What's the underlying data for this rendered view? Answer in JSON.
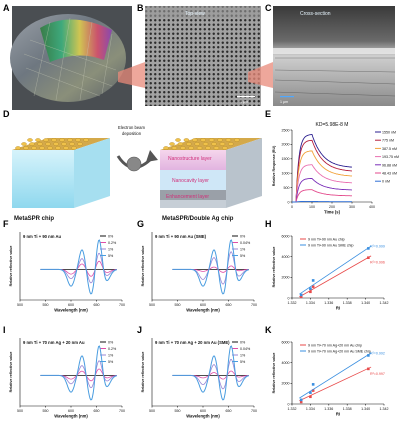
{
  "panels": [
    "A",
    "B",
    "C",
    "D",
    "E",
    "F",
    "G",
    "H",
    "I",
    "J",
    "K"
  ],
  "sem": {
    "top_label": "Top-view",
    "cross_label": "Cross-section",
    "scale_b": "1 μm",
    "scale_c": "1 μm"
  },
  "schematic": {
    "arrow_label": "Electron beam deposition",
    "layer_nano": "Nanostructure layer",
    "layer_cavity": "Nanocavity layer",
    "layer_enh": "Enhancement layer",
    "chip_left": "MetaSPR chip",
    "chip_right": "MetaSPR/Double Ag chip"
  },
  "colors": {
    "c1550": "#2a1e8f",
    "c775": "#b51e3c",
    "c387": "#f2a33a",
    "c193": "#e96fb0",
    "c96": "#7a2fb8",
    "c48": "#e34a8c",
    "c0": "#2f6fd6",
    "line0": "#111111",
    "line02": "#e04fa8",
    "line1": "#9a86d6",
    "line5": "#4a9de0",
    "h_au": "#e84a4a",
    "h_sme": "#3a8fe0"
  },
  "chart_data": [
    {
      "panel": "E",
      "type": "line",
      "title": "KD=5.98E-8 M",
      "xlabel": "Time (s)",
      "ylabel": "Relative Response (RU)",
      "xlim": [
        0,
        400
      ],
      "ylim": [
        0,
        2500
      ],
      "xticks": [
        "0",
        "100",
        "200",
        "300",
        "400"
      ],
      "yticks": [
        "0",
        "500",
        "1000",
        "1500",
        "2000",
        "2500"
      ],
      "series": [
        {
          "name": "1550 nM",
          "peak": 2350,
          "end": 1180
        },
        {
          "name": "775 nM",
          "peak": 2150,
          "end": 1050
        },
        {
          "name": "387.5 nM",
          "peak": 1780,
          "end": 880
        },
        {
          "name": "193.75 nM",
          "peak": 1300,
          "end": 650
        },
        {
          "name": "96.88 nM",
          "peak": 820,
          "end": 410
        },
        {
          "name": "48.43 nM",
          "peak": 430,
          "end": 210
        },
        {
          "name": "0 nM",
          "peak": 20,
          "end": 10
        }
      ]
    },
    {
      "panel": "F",
      "type": "line",
      "title": "9 nm Ti + 90 nm Au",
      "xlabel": "Wavelength (nm)",
      "ylabel": "Relative reflective value",
      "xlim": [
        500,
        700
      ],
      "xticks": [
        "500",
        "550",
        "600",
        "650",
        "700"
      ],
      "series": [
        {
          "name": "0%"
        },
        {
          "name": "0.2%"
        },
        {
          "name": "1%"
        },
        {
          "name": "5%"
        }
      ],
      "amplitudes": [
        0,
        0.28,
        0.55,
        1.0
      ]
    },
    {
      "panel": "G",
      "type": "line",
      "title": "9 nm Ti + 90 nm Au (SME)",
      "xlabel": "Wavelength (nm)",
      "ylabel": "Relative reflective value",
      "xlim": [
        500,
        700
      ],
      "xticks": [
        "500",
        "550",
        "600",
        "650",
        "700"
      ],
      "series": [
        {
          "name": "0%"
        },
        {
          "name": "0.04%"
        },
        {
          "name": "1%"
        },
        {
          "name": "5%"
        }
      ],
      "amplitudes": [
        0,
        0.12,
        0.6,
        1.0
      ]
    },
    {
      "panel": "H",
      "type": "scatter",
      "xlabel": "RI",
      "ylabel": "Relative reflective value",
      "xlim": [
        1.332,
        1.342
      ],
      "ylim": [
        0,
        6000
      ],
      "xticks": [
        "1.332",
        "1.334",
        "1.336",
        "1.338",
        "1.340",
        "1.342"
      ],
      "yticks": [
        "0",
        "2000",
        "4000",
        "6000"
      ],
      "series": [
        {
          "name": "9 nm Ti+90 nm Au chip",
          "x": [
            1.333,
            1.334,
            1.3343,
            1.3403
          ],
          "y": [
            120,
            600,
            1100,
            3900
          ],
          "r2": "R²=0.996"
        },
        {
          "name": "9 nm Ti+90 nm Au SME chip",
          "x": [
            1.333,
            1.334,
            1.3343,
            1.3403
          ],
          "y": [
            300,
            900,
            1700,
            4800
          ],
          "r2": "R²=0.999"
        }
      ]
    },
    {
      "panel": "I",
      "type": "line",
      "title": "9 nm Ti + 70 nm Ag + 20 nm Au",
      "xlabel": "Wavelength (nm)",
      "ylabel": "Relative reflective value",
      "xlim": [
        500,
        700
      ],
      "xticks": [
        "500",
        "550",
        "600",
        "650",
        "700"
      ],
      "series": [
        {
          "name": "0%"
        },
        {
          "name": "0.2%"
        },
        {
          "name": "1%"
        },
        {
          "name": "5%"
        }
      ],
      "amplitudes": [
        0,
        0.22,
        0.5,
        1.0
      ]
    },
    {
      "panel": "J",
      "type": "line",
      "title": "9 nm Ti + 70 nm Ag + 20 nm Au (SME)",
      "xlabel": "Wavelength (nm)",
      "ylabel": "Relative reflective value",
      "xlim": [
        500,
        700
      ],
      "xticks": [
        "500",
        "550",
        "600",
        "650",
        "700"
      ],
      "series": [
        {
          "name": "0%"
        },
        {
          "name": "0.04%"
        },
        {
          "name": "1%"
        },
        {
          "name": "5%"
        }
      ],
      "amplitudes": [
        0,
        0.15,
        0.55,
        1.0
      ]
    },
    {
      "panel": "K",
      "type": "scatter",
      "xlabel": "RI",
      "ylabel": "Relative reflective value",
      "xlim": [
        1.332,
        1.342
      ],
      "ylim": [
        0,
        6000
      ],
      "xticks": [
        "1.332",
        "1.334",
        "1.336",
        "1.338",
        "1.340",
        "1.342"
      ],
      "yticks": [
        "0",
        "2000",
        "4000",
        "6000"
      ],
      "series": [
        {
          "name": "9 nm Ti+70 nm Ag+20 nm Au chip",
          "x": [
            1.333,
            1.334,
            1.3343,
            1.3403
          ],
          "y": [
            200,
            700,
            1300,
            3400
          ],
          "r2": "R²=0.997"
        },
        {
          "name": "9 nm Ti+70 nm Ag+20 nm Au SME chip",
          "x": [
            1.333,
            1.334,
            1.3343,
            1.3403
          ],
          "y": [
            400,
            1100,
            1900,
            4700
          ],
          "r2": "R²=0.992"
        }
      ]
    }
  ]
}
